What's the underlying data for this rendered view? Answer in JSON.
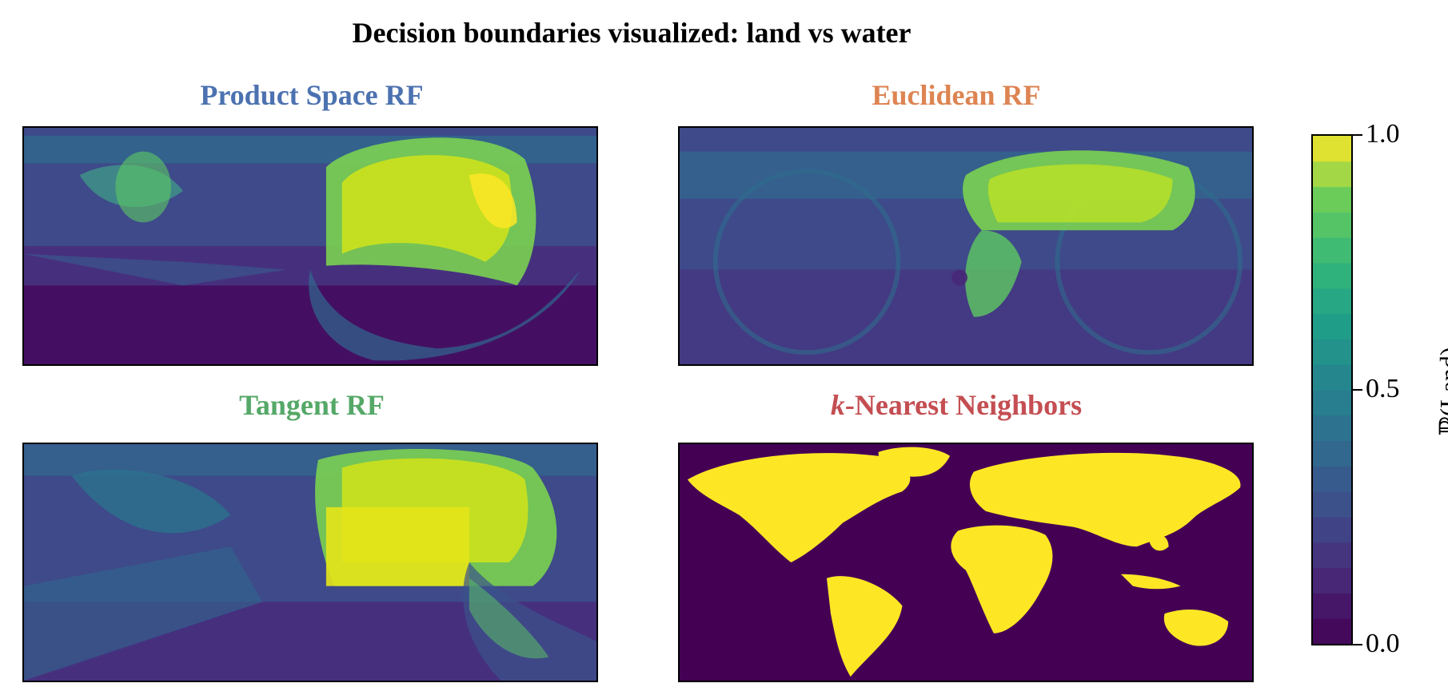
{
  "chart_data": {
    "type": "heatmap",
    "title": "Decision boundaries visualized: land vs water",
    "colormap": "viridis",
    "panels": [
      {
        "title": "Product Space RF",
        "title_color": "#4c72b0",
        "description": "probability field over world map",
        "dominant_land_regions": [
          "Europe",
          "Asia",
          "North Africa"
        ]
      },
      {
        "title": "Euclidean RF",
        "title_color": "#dd8452",
        "description": "probability field over world map",
        "dominant_land_regions": [
          "Eurasia"
        ]
      },
      {
        "title": "Tangent RF",
        "title_color": "#55a868",
        "description": "probability field over world map",
        "dominant_land_regions": [
          "Europe",
          "Asia"
        ]
      },
      {
        "title_prefix": "k",
        "title_suffix": "-Nearest Neighbors",
        "title_color": "#c44e52",
        "description": "binary land/water prediction",
        "dominant_land_regions": [
          "All continents"
        ]
      }
    ],
    "colorbar": {
      "label_symbol": "ℙ",
      "label_text": "(Land)",
      "range": [
        0.0,
        1.0
      ],
      "ticks": [
        "1.0",
        "0.5",
        "0.0"
      ],
      "levels": 20
    }
  },
  "colors": {
    "low": "#440154",
    "mid": "#21908d",
    "high": "#fde725"
  }
}
